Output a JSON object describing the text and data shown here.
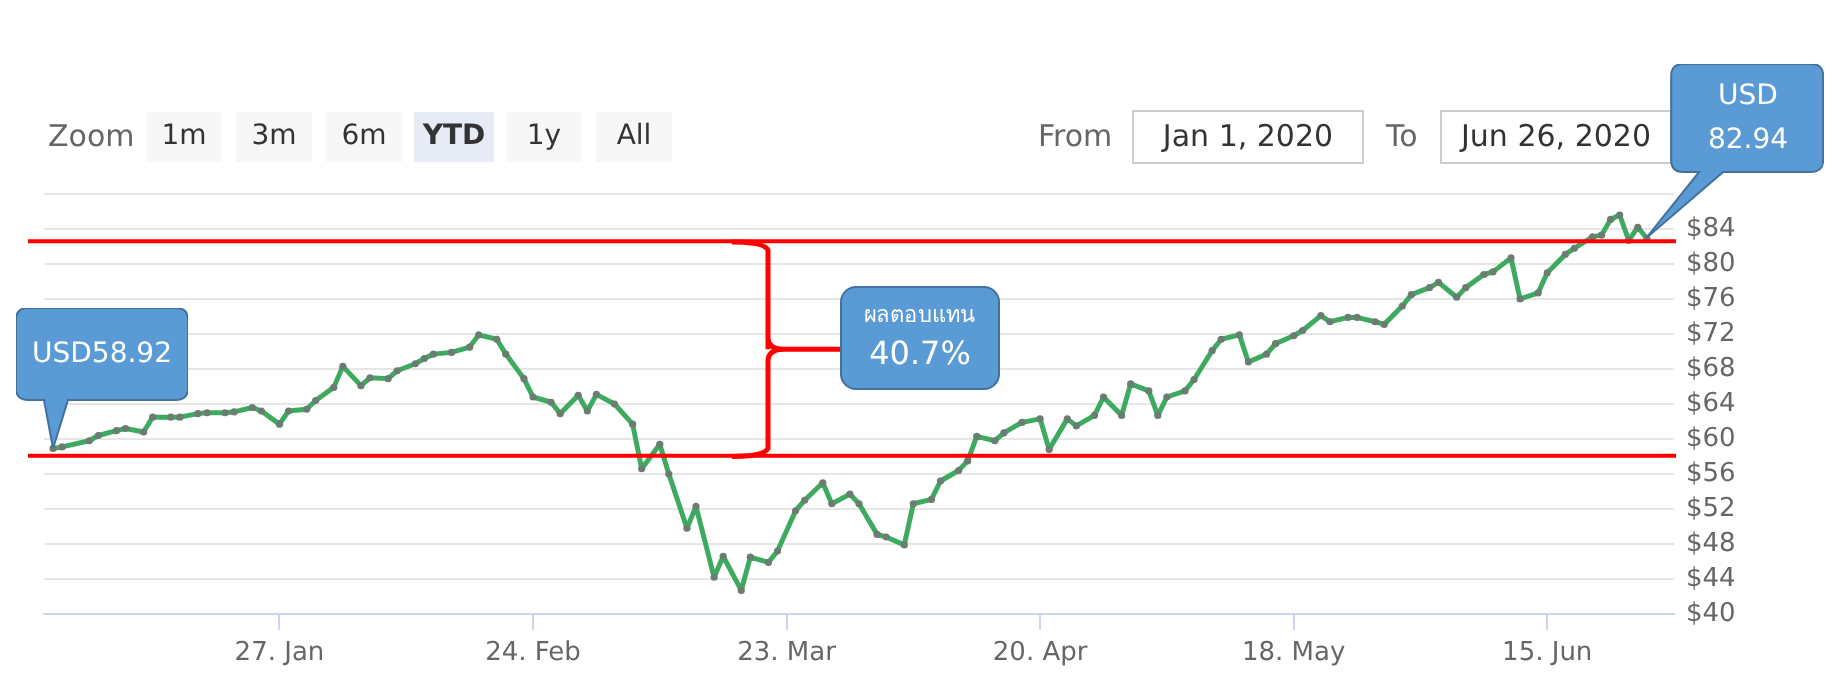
{
  "chart_data": {
    "type": "line",
    "color": "#3daa5f",
    "marker": "circle",
    "grid": "y",
    "xlim": [
      "2020-01-01",
      "2020-06-29"
    ],
    "ylim": [
      40,
      88
    ],
    "xticks": [
      {
        "value": "2020-01-27",
        "label": "27. Jan"
      },
      {
        "value": "2020-02-24",
        "label": "24. Feb"
      },
      {
        "value": "2020-03-23",
        "label": "23. Mar"
      },
      {
        "value": "2020-04-20",
        "label": "20. Apr"
      },
      {
        "value": "2020-05-18",
        "label": "18. May"
      },
      {
        "value": "2020-06-15",
        "label": "15. Jun"
      }
    ],
    "yticks": [
      {
        "value": 40,
        "label": "$40"
      },
      {
        "value": 44,
        "label": "$44"
      },
      {
        "value": 48,
        "label": "$48"
      },
      {
        "value": 52,
        "label": "$52"
      },
      {
        "value": 56,
        "label": "$56"
      },
      {
        "value": 60,
        "label": "$60"
      },
      {
        "value": 64,
        "label": "$64"
      },
      {
        "value": 68,
        "label": "$68"
      },
      {
        "value": 72,
        "label": "$72"
      },
      {
        "value": 76,
        "label": "$76"
      },
      {
        "value": 80,
        "label": "$80"
      },
      {
        "value": 84,
        "label": "$84"
      },
      {
        "value": 88,
        "label": null
      }
    ],
    "x": [
      "2020-01-02",
      "2020-01-03",
      "2020-01-06",
      "2020-01-07",
      "2020-01-09",
      "2020-01-10",
      "2020-01-12",
      "2020-01-13",
      "2020-01-15",
      "2020-01-16",
      "2020-01-18",
      "2020-01-19",
      "2020-01-21",
      "2020-01-22",
      "2020-01-24",
      "2020-01-25",
      "2020-01-27",
      "2020-01-28",
      "2020-01-30",
      "2020-01-31",
      "2020-02-02",
      "2020-02-03",
      "2020-02-05",
      "2020-02-06",
      "2020-02-08",
      "2020-02-09",
      "2020-02-11",
      "2020-02-12",
      "2020-02-13",
      "2020-02-15",
      "2020-02-17",
      "2020-02-18",
      "2020-02-20",
      "2020-02-21",
      "2020-02-23",
      "2020-02-24",
      "2020-02-26",
      "2020-02-27",
      "2020-02-29",
      "2020-03-01",
      "2020-03-02",
      "2020-03-04",
      "2020-03-06",
      "2020-03-07",
      "2020-03-09",
      "2020-03-10",
      "2020-03-12",
      "2020-03-13",
      "2020-03-15",
      "2020-03-16",
      "2020-03-18",
      "2020-03-19",
      "2020-03-21",
      "2020-03-22",
      "2020-03-24",
      "2020-03-25",
      "2020-03-27",
      "2020-03-28",
      "2020-03-30",
      "2020-03-31",
      "2020-04-02",
      "2020-04-03",
      "2020-04-05",
      "2020-04-06",
      "2020-04-08",
      "2020-04-09",
      "2020-04-11",
      "2020-04-12",
      "2020-04-13",
      "2020-04-15",
      "2020-04-16",
      "2020-04-18",
      "2020-04-20",
      "2020-04-21",
      "2020-04-23",
      "2020-04-24",
      "2020-04-26",
      "2020-04-27",
      "2020-04-29",
      "2020-04-30",
      "2020-05-02",
      "2020-05-03",
      "2020-05-04",
      "2020-05-06",
      "2020-05-07",
      "2020-05-09",
      "2020-05-10",
      "2020-05-12",
      "2020-05-13",
      "2020-05-15",
      "2020-05-16",
      "2020-05-18",
      "2020-05-19",
      "2020-05-21",
      "2020-05-22",
      "2020-05-24",
      "2020-05-25",
      "2020-05-27",
      "2020-05-28",
      "2020-05-30",
      "2020-05-31",
      "2020-06-02",
      "2020-06-03",
      "2020-06-05",
      "2020-06-06",
      "2020-06-08",
      "2020-06-09",
      "2020-06-11",
      "2020-06-12",
      "2020-06-14",
      "2020-06-15",
      "2020-06-17",
      "2020-06-18",
      "2020-06-20",
      "2020-06-21",
      "2020-06-22",
      "2020-06-23",
      "2020-06-24",
      "2020-06-25",
      "2020-06-26"
    ],
    "values": [
      58.92,
      59.1,
      59.8,
      60.4,
      60.95,
      61.2,
      60.8,
      62.5,
      62.5,
      62.5,
      62.9,
      63.0,
      63.0,
      63.1,
      63.6,
      63.2,
      61.7,
      63.2,
      63.4,
      64.4,
      65.9,
      68.3,
      66.1,
      67.0,
      66.9,
      67.8,
      68.6,
      69.2,
      69.7,
      69.9,
      70.5,
      71.9,
      71.4,
      69.7,
      66.9,
      64.8,
      64.2,
      62.9,
      65.0,
      63.2,
      65.1,
      64.0,
      61.7,
      56.6,
      59.4,
      56.0,
      49.8,
      52.3,
      44.2,
      46.6,
      42.7,
      46.5,
      45.9,
      47.2,
      51.8,
      53.0,
      55.0,
      52.6,
      53.7,
      52.6,
      49.1,
      48.8,
      47.9,
      52.6,
      53.1,
      55.2,
      56.4,
      57.5,
      60.3,
      59.8,
      60.7,
      61.9,
      62.3,
      58.8,
      62.3,
      61.5,
      62.7,
      64.8,
      62.7,
      66.3,
      65.5,
      62.7,
      64.8,
      65.5,
      66.8,
      70.1,
      71.4,
      71.9,
      68.8,
      69.7,
      70.9,
      71.8,
      72.4,
      74.1,
      73.4,
      73.9,
      73.9,
      73.4,
      73.1,
      75.2,
      76.5,
      77.3,
      77.9,
      76.2,
      77.3,
      78.8,
      79.1,
      80.7,
      76.0,
      76.7,
      79.0,
      81.1,
      81.8,
      83.1,
      83.3,
      85.1,
      85.6,
      82.7,
      84.2,
      82.94
    ],
    "ref_lines": [
      {
        "axis": "y",
        "value": 82.6,
        "color": "#ff0000"
      },
      {
        "axis": "y",
        "value": 58.1,
        "color": "#ff0000"
      }
    ],
    "annotations": [
      "Zoom",
      "1m",
      "3m",
      "6m",
      "YTD",
      "1y",
      "All",
      "From",
      "Jan 1, 2020",
      "To",
      "Jun 26, 2020",
      "ผลตอบแทน\n40.7%",
      "USD\n82.94",
      {
        "text": "USD58.92",
        "x": "2020-01-02",
        "y": 58.92
      }
    ]
  }
}
